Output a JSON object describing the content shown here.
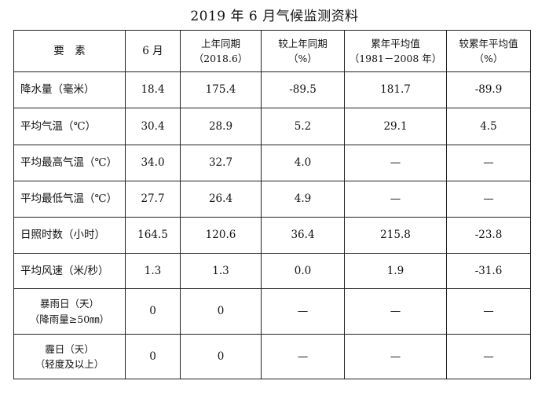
{
  "title": "2019 年 6 月气候监测资料",
  "headers": [
    {
      "line1": "要　素",
      "line2": ""
    },
    {
      "line1": "6 月",
      "line2": ""
    },
    {
      "line1": "上年同期",
      "line2": "（2018.6）"
    },
    {
      "line1": "较上年同期",
      "line2": "（%）"
    },
    {
      "line1": "累年平均值",
      "line2": "（1981－2008 年）"
    },
    {
      "line1": "较累年平均值",
      "line2": "（%）"
    }
  ],
  "rows": [
    {
      "label1": "降水量（毫米）",
      "label2": "",
      "june": "18.4",
      "last_year": "175.4",
      "vs_last_year": "-89.5",
      "normal": "181.7",
      "vs_normal": "-89.9"
    },
    {
      "label1": "平均气温（℃）",
      "label2": "",
      "june": "30.4",
      "last_year": "28.9",
      "vs_last_year": "5.2",
      "normal": "29.1",
      "vs_normal": "4.5"
    },
    {
      "label1": "平均最高气温（℃）",
      "label2": "",
      "june": "34.0",
      "last_year": "32.7",
      "vs_last_year": "4.0",
      "normal": "—",
      "vs_normal": "—"
    },
    {
      "label1": "平均最低气温（℃）",
      "label2": "",
      "june": "27.7",
      "last_year": "26.4",
      "vs_last_year": "4.9",
      "normal": "—",
      "vs_normal": "—"
    },
    {
      "label1": "日照时数（小时）",
      "label2": "",
      "june": "164.5",
      "last_year": "120.6",
      "vs_last_year": "36.4",
      "normal": "215.8",
      "vs_normal": "-23.8"
    },
    {
      "label1": "平均风速（米/秒）",
      "label2": "",
      "june": "1.3",
      "last_year": "1.3",
      "vs_last_year": "0.0",
      "normal": "1.9",
      "vs_normal": "-31.6"
    },
    {
      "label1": "暴雨日（天）",
      "label2": "（降雨量≥50㎜）",
      "june": "0",
      "last_year": "0",
      "vs_last_year": "—",
      "normal": "—",
      "vs_normal": "—"
    },
    {
      "label1": "霾日（天）",
      "label2": "（轻度及以上）",
      "june": "0",
      "last_year": "0",
      "vs_last_year": "—",
      "normal": "—",
      "vs_normal": "—"
    }
  ]
}
